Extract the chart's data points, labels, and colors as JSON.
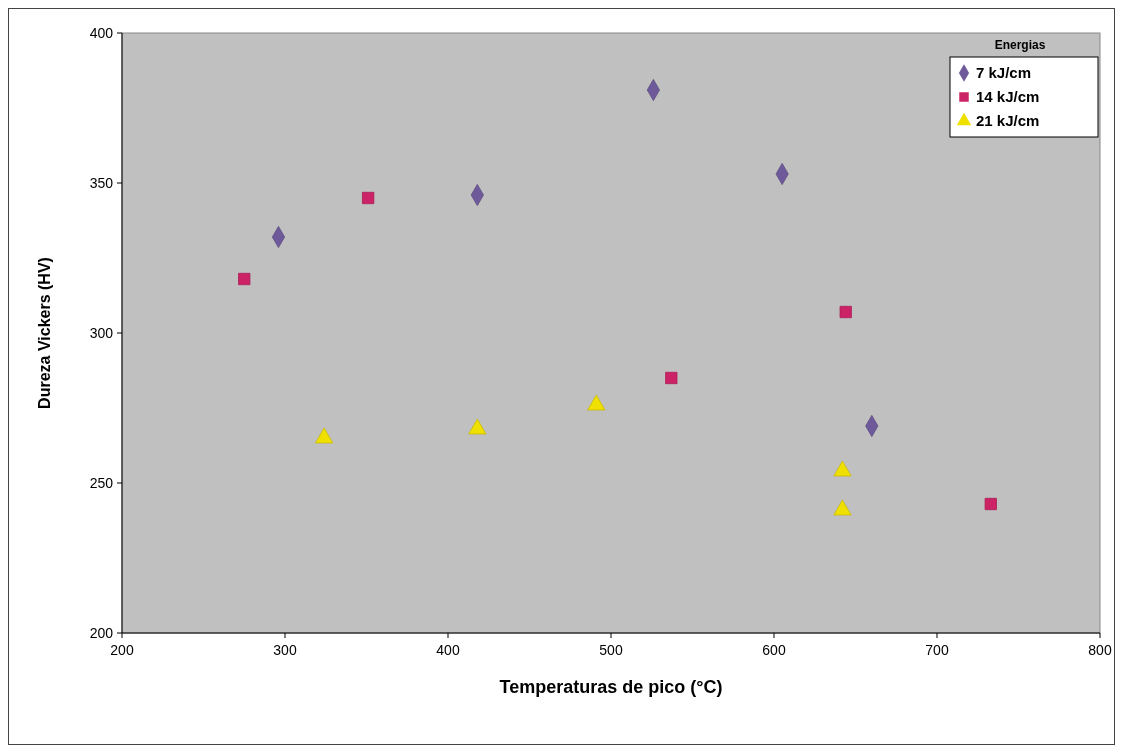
{
  "chart_data": {
    "type": "scatter",
    "xlabel": "Temperaturas de pico (°C)",
    "ylabel": "Dureza Vickers (HV)",
    "legend_title": "Energias",
    "legend": "top right",
    "grid": false,
    "xlim": [
      200,
      800
    ],
    "xticks": [
      200,
      300,
      400,
      500,
      600,
      700,
      800
    ],
    "ylim": [
      200,
      400
    ],
    "yticks": [
      200,
      250,
      300,
      350,
      400
    ],
    "series": [
      {
        "name": "7 kJ/cm",
        "color": "#6e5a9a",
        "marker": "diamond",
        "x": [
          296,
          418,
          526,
          605,
          660
        ],
        "values": [
          332,
          346,
          381,
          353,
          269
        ]
      },
      {
        "name": "14 kJ/cm",
        "color": "#cc2266",
        "marker": "square",
        "x": [
          275,
          351,
          537,
          644,
          733
        ],
        "values": [
          318,
          345,
          285,
          307,
          243
        ]
      },
      {
        "name": "21 kJ/cm",
        "color": "#f0e000",
        "marker": "triangle",
        "x": [
          324,
          418,
          491,
          642,
          642
        ],
        "values": [
          265,
          268,
          276,
          254,
          241
        ]
      }
    ]
  }
}
